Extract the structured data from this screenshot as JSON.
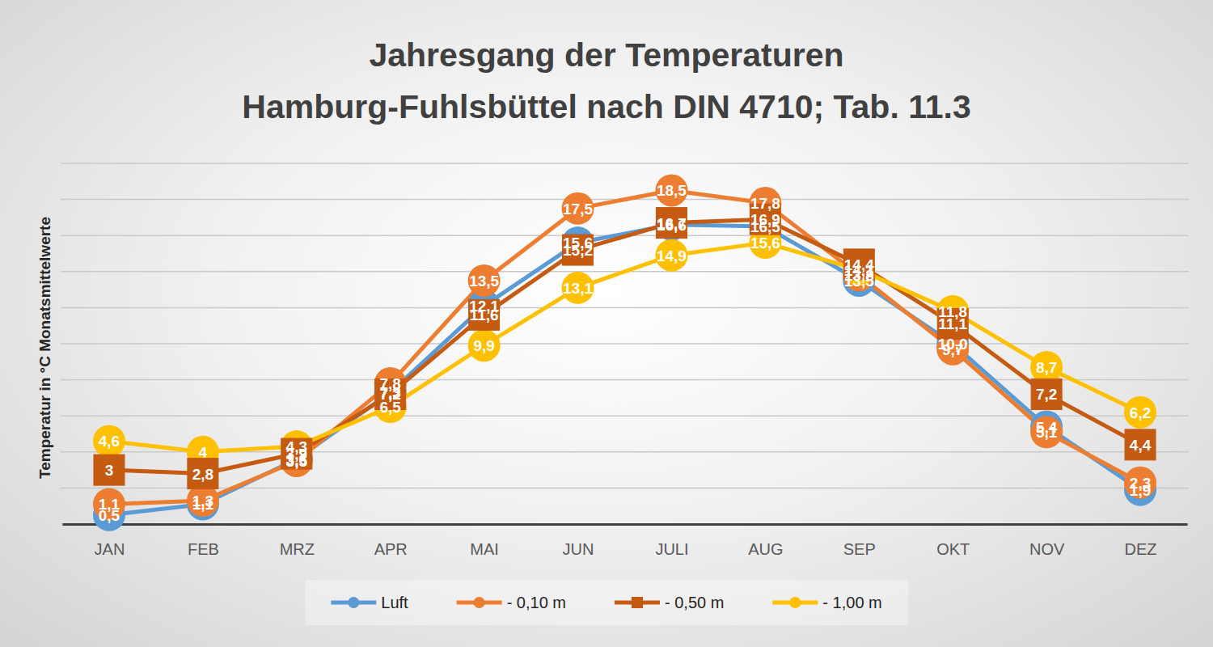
{
  "chart_data": {
    "type": "line",
    "title": "Jahresgang der Temperaturen",
    "subtitle": "Hamburg-Fuhlsbüttel nach DIN 4710; Tab. 11.3",
    "y_label": "Temperatur in °C Monatsmittelwerte",
    "categories": [
      "JAN",
      "FEB",
      "MRZ",
      "APR",
      "MAI",
      "JUN",
      "JULI",
      "AUG",
      "SEP",
      "OKT",
      "NOV",
      "DEZ"
    ],
    "ylim": [
      0,
      20
    ],
    "yticks": [
      0,
      2,
      4,
      6,
      8,
      10,
      12,
      14,
      16,
      18,
      20
    ],
    "grid": true,
    "tick_labels": "x",
    "legend": "bottom",
    "data_labels": true,
    "series": [
      {
        "name": "Luft",
        "color": "#5B9BD5",
        "marker": "circle",
        "values": [
          0.5,
          1.1,
          3.6,
          7.3,
          12.1,
          15.6,
          16.6,
          16.5,
          13.5,
          10.0,
          5.4,
          1.9
        ],
        "value_labels": [
          "0,5",
          "1,1",
          "3,6",
          "7,3",
          "12,1",
          "15,6",
          "16,6",
          "16,5",
          "13,5",
          "10,0",
          "5,4",
          "1,9"
        ]
      },
      {
        "name": "- 0,10 m",
        "color": "#ED7D31",
        "marker": "circle",
        "values": [
          1.1,
          1.3,
          3.5,
          7.8,
          13.5,
          17.5,
          18.5,
          17.8,
          13.8,
          9.7,
          5.1,
          2.3
        ],
        "value_labels": [
          "1,1",
          "1,3",
          "3,5",
          "7,8",
          "13,5",
          "17,5",
          "18,5",
          "17,8",
          "13,8",
          "9,7",
          "5,1",
          "2,3"
        ]
      },
      {
        "name": "- 0,50 m",
        "color": "#C55A11",
        "marker": "square",
        "values": [
          3,
          2.8,
          3.9,
          7.2,
          11.6,
          15.2,
          16.7,
          16.9,
          14.4,
          11.1,
          7.2,
          4.4
        ],
        "value_labels": [
          "3",
          "2,8",
          "3,9",
          "7,2",
          "11,6",
          "15,2",
          "16,7",
          "16,9",
          "14,4",
          "11,1",
          "7,2",
          "4,4"
        ]
      },
      {
        "name": "- 1,00 m",
        "color": "#FFC000",
        "marker": "circle",
        "values": [
          4.6,
          4,
          4.3,
          6.5,
          9.9,
          13.1,
          14.9,
          15.6,
          14.1,
          11.8,
          8.7,
          6.2
        ],
        "value_labels": [
          "4,6",
          "4",
          "4,3",
          "6,5",
          "9,9",
          "13,1",
          "14,9",
          "15,6",
          "14,1",
          "11,8",
          "8,7",
          "6,2"
        ]
      }
    ]
  }
}
